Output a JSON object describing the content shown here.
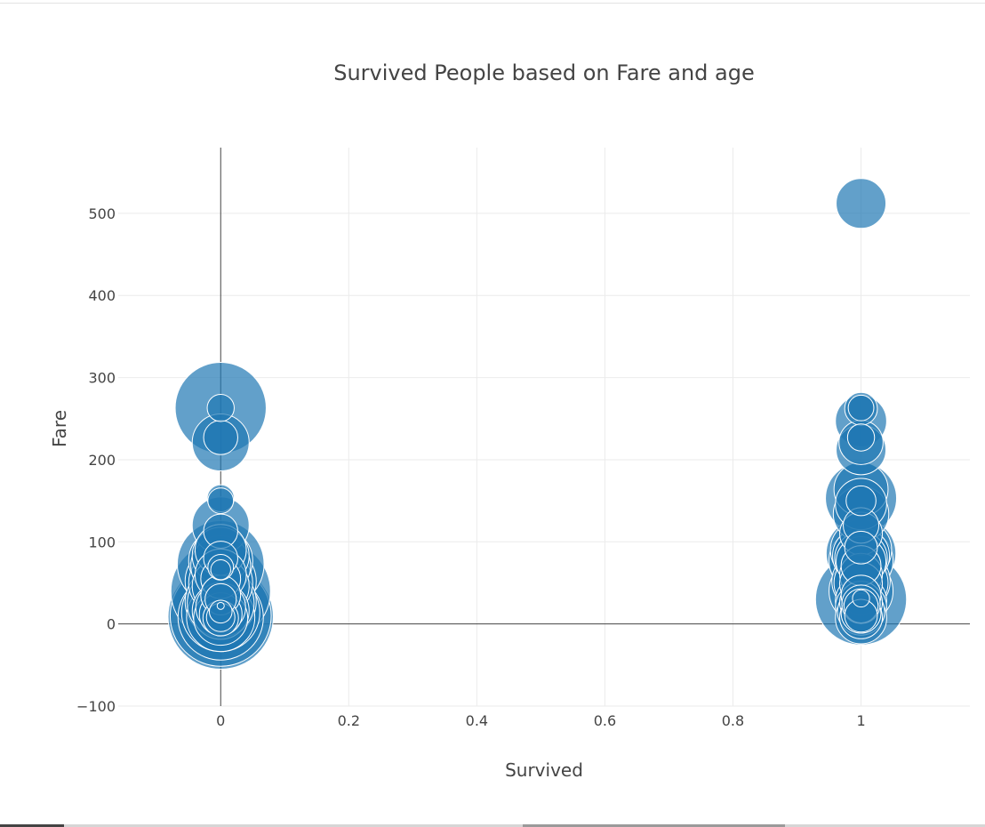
{
  "chart_data": {
    "type": "scatter",
    "title": "Survived People based on Fare and age",
    "xlabel": "Survived",
    "ylabel": "Fare",
    "xlim": [
      -0.16,
      1.17
    ],
    "ylim": [
      -100,
      580
    ],
    "x_ticks": [
      "0",
      "0.2",
      "0.4",
      "0.6",
      "0.8",
      "1"
    ],
    "x_tick_values": [
      0,
      0.2,
      0.4,
      0.6,
      0.8,
      1
    ],
    "y_ticks": [
      "−100",
      "0",
      "100",
      "200",
      "300",
      "400",
      "500"
    ],
    "y_tick_values": [
      -100,
      0,
      100,
      200,
      300,
      400,
      500
    ],
    "grid": true,
    "marker_color": "#1f77b4",
    "marker_opacity": 0.7,
    "marker_line_color": "#ffffff",
    "size_variable": "age",
    "series": [
      {
        "x": [
          0,
          0,
          0,
          0,
          0,
          0,
          0,
          0,
          0,
          0,
          0,
          0,
          0,
          0,
          0,
          0,
          0,
          0,
          0,
          0,
          0,
          0,
          0,
          0,
          0,
          0,
          0,
          0,
          0,
          0,
          0,
          0,
          0,
          0,
          0,
          0,
          0,
          0,
          0
        ],
        "y": [
          263,
          263,
          227,
          221,
          153,
          150,
          120,
          113,
          90,
          83,
          80,
          77,
          73,
          71,
          69,
          66,
          60,
          55,
          52,
          50,
          46,
          40,
          35,
          30,
          27,
          25,
          22,
          20,
          16,
          14,
          12,
          10,
          9,
          8,
          8,
          7,
          7,
          8,
          15
        ],
        "age": [
          64,
          19,
          24,
          40,
          19,
          18,
          40,
          24,
          36,
          40,
          24,
          45,
          61,
          42,
          18,
          14,
          36,
          28,
          50,
          45,
          40,
          70,
          28,
          22,
          50,
          47,
          2,
          35,
          40,
          55,
          30,
          71,
          74,
          60,
          48,
          38,
          25,
          20,
          16
        ]
      },
      {
        "x": [
          1,
          1,
          1,
          1,
          1,
          1,
          1,
          1,
          1,
          1,
          1,
          1,
          1,
          1,
          1,
          1,
          1,
          1,
          1,
          1,
          1,
          1,
          1,
          1,
          1,
          1,
          1,
          1,
          1,
          1,
          1,
          1,
          1,
          1,
          1,
          1,
          1,
          1,
          1,
          1
        ],
        "y": [
          512,
          263,
          262,
          247,
          227,
          221,
          212,
          164,
          153,
          150,
          146,
          134,
          120,
          110,
          93,
          90,
          86,
          83,
          80,
          77,
          76,
          71,
          60,
          52,
          50,
          49,
          40,
          35,
          31,
          30,
          28,
          26,
          24,
          22,
          20,
          15,
          13,
          10,
          8,
          7
        ],
        "age": [
          35,
          18,
          23,
          36,
          19,
          31,
          35,
          38,
          50,
          21,
          36,
          39,
          25,
          30,
          23,
          43,
          49,
          40,
          37,
          45,
          35,
          28,
          30,
          41,
          38,
          30,
          45,
          28,
          12,
          64,
          36,
          30,
          27,
          24,
          36,
          33,
          28,
          23,
          30,
          36
        ]
      }
    ]
  }
}
